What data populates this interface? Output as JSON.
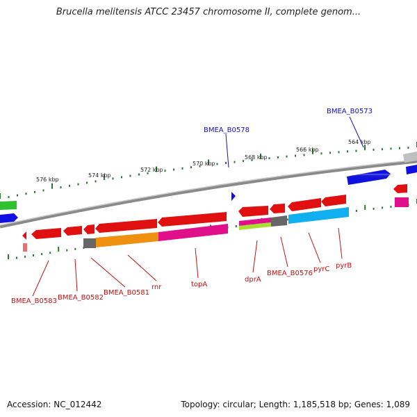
{
  "title": "Brucella melitensis ATCC 23457 chromosome II, complete genom...",
  "footer": {
    "accession": "Accession: NC_012442",
    "stats": "Topology: circular; Length: 1,185,518 bp; Genes: 1,089"
  },
  "colors": {
    "backbone": "#808080",
    "tick": "#2a7a2a",
    "forward_label": "#1010c0",
    "reverse_label": "#c01010",
    "red_gene": "#e01010",
    "blue_gene": "#1010e0",
    "magenta_gene": "#e0108a",
    "orange_gene": "#f09010",
    "cyan_gene": "#10b0f0",
    "green_gene": "#30c030",
    "gray_gene": "#666666",
    "lime_gene": "#a8e030"
  },
  "scale": {
    "labels": [
      {
        "text": "576 kbp"
      },
      {
        "text": "574 kbp"
      },
      {
        "text": "572 kbp"
      },
      {
        "text": "570 kbp"
      },
      {
        "text": "568 kbp"
      },
      {
        "text": "566 kbp"
      },
      {
        "text": "564 kbp"
      }
    ]
  },
  "gene_labels": {
    "forward": [
      {
        "text": "BMEA_B0578"
      },
      {
        "text": "BMEA_B0573"
      }
    ],
    "reverse": [
      {
        "text": "BMEA_B0583"
      },
      {
        "text": "BMEA_B0582"
      },
      {
        "text": "BMEA_B0581"
      },
      {
        "text": "rnr"
      },
      {
        "text": "topA"
      },
      {
        "text": "dprA"
      },
      {
        "text": "BMEA_B0576"
      },
      {
        "text": "pyrC"
      },
      {
        "text": "pyrB"
      }
    ]
  }
}
